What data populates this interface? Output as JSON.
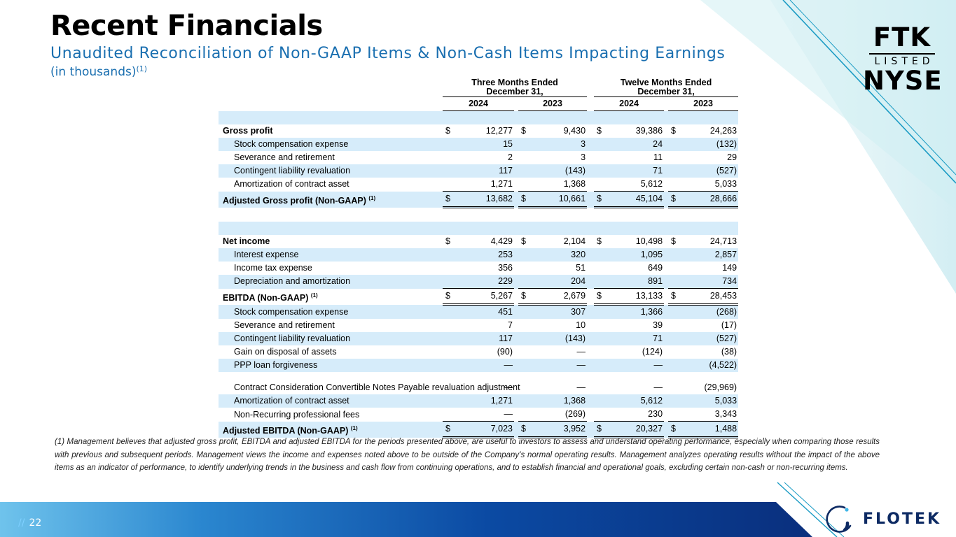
{
  "header": {
    "title": "Recent Financials",
    "subtitle": "Unaudited Reconciliation of Non-GAAP Items & Non-Cash Items Impacting Earnings",
    "units": "(in thousands)",
    "units_note": "(1)"
  },
  "badge": {
    "line1": "FTK",
    "line2": "LISTED",
    "line3": "NYSE"
  },
  "table": {
    "group1_line1": "Three Months Ended",
    "group1_line2": "December 31,",
    "group2_line1": "Twelve Months Ended",
    "group2_line2": "December 31,",
    "years": [
      "2024",
      "2023",
      "2024",
      "2023"
    ],
    "currency": "$",
    "rows": {
      "gross_profit": {
        "label": "Gross profit",
        "v": [
          "12,277",
          "9,430",
          "39,386",
          "24,263"
        ]
      },
      "gp_stock_comp": {
        "label": "Stock compensation expense",
        "v": [
          "15",
          "3",
          "24",
          "(132)"
        ]
      },
      "gp_severance": {
        "label": "Severance and retirement",
        "v": [
          "2",
          "3",
          "11",
          "29"
        ]
      },
      "gp_contingent": {
        "label": "Contingent liability revaluation",
        "v": [
          "117",
          "(143)",
          "71",
          "(527)"
        ]
      },
      "gp_amort": {
        "label": "Amortization of contract asset",
        "v": [
          "1,271",
          "1,368",
          "5,612",
          "5,033"
        ]
      },
      "adj_gross_profit": {
        "label": "Adjusted Gross profit (Non-GAAP)",
        "note": "(1)",
        "v": [
          "13,682",
          "10,661",
          "45,104",
          "28,666"
        ]
      },
      "net_income": {
        "label": "Net income",
        "v": [
          "4,429",
          "2,104",
          "10,498",
          "24,713"
        ]
      },
      "interest": {
        "label": "Interest expense",
        "v": [
          "253",
          "320",
          "1,095",
          "2,857"
        ]
      },
      "income_tax": {
        "label": "Income tax expense",
        "v": [
          "356",
          "51",
          "649",
          "149"
        ]
      },
      "dep_amort": {
        "label": "Depreciation and amortization",
        "v": [
          "229",
          "204",
          "891",
          "734"
        ]
      },
      "ebitda": {
        "label": "EBITDA (Non-GAAP)",
        "note": "(1)",
        "v": [
          "5,267",
          "2,679",
          "13,133",
          "28,453"
        ]
      },
      "eb_stock_comp": {
        "label": "Stock compensation expense",
        "v": [
          "451",
          "307",
          "1,366",
          "(268)"
        ]
      },
      "eb_severance": {
        "label": "Severance and retirement",
        "v": [
          "7",
          "10",
          "39",
          "(17)"
        ]
      },
      "eb_contingent": {
        "label": "Contingent liability revaluation",
        "v": [
          "117",
          "(143)",
          "71",
          "(527)"
        ]
      },
      "gain_disposal": {
        "label": "Gain on disposal of assets",
        "v": [
          "(90)",
          "—",
          "(124)",
          "(38)"
        ]
      },
      "ppp": {
        "label": "PPP loan forgiveness",
        "v": [
          "—",
          "—",
          "—",
          "(4,522)"
        ]
      },
      "convertible": {
        "label": "Contract Consideration Convertible Notes Payable revaluation adjustment",
        "v": [
          "—",
          "—",
          "—",
          "(29,969)"
        ]
      },
      "eb_amort": {
        "label": "Amortization of contract asset",
        "v": [
          "1,271",
          "1,368",
          "5,612",
          "5,033"
        ]
      },
      "professional_fees": {
        "label": "Non-Recurring professional fees",
        "v": [
          "—",
          "(269)",
          "230",
          "3,343"
        ]
      },
      "adj_ebitda": {
        "label": "Adjusted EBITDA (Non-GAAP)",
        "note": "(1)",
        "v": [
          "7,023",
          "3,952",
          "20,327",
          "1,488"
        ]
      }
    }
  },
  "footnote": "(1) Management believes that adjusted gross profit, EBITDA and adjusted EBITDA for the periods presented above, are useful to investors to assess and understand operating performance, especially when comparing those results with previous and subsequent periods.  Management views the income and expenses noted above to be outside of the Company’s normal operating results.  Management analyzes operating results without the impact of the above items as an indicator of performance, to identify underlying trends in the business and cash flow from continuing operations, and to establish financial and operational goals, excluding certain non-cash or non-recurring items.",
  "footer": {
    "page_prefix": "//",
    "page_number": "22",
    "brand": "FLOTEK"
  },
  "colors": {
    "accent": "#1a6fb0",
    "row_shade": "#d6ecfa",
    "footer_band": "#0a3d91",
    "brand_text": "#0d2a63"
  }
}
